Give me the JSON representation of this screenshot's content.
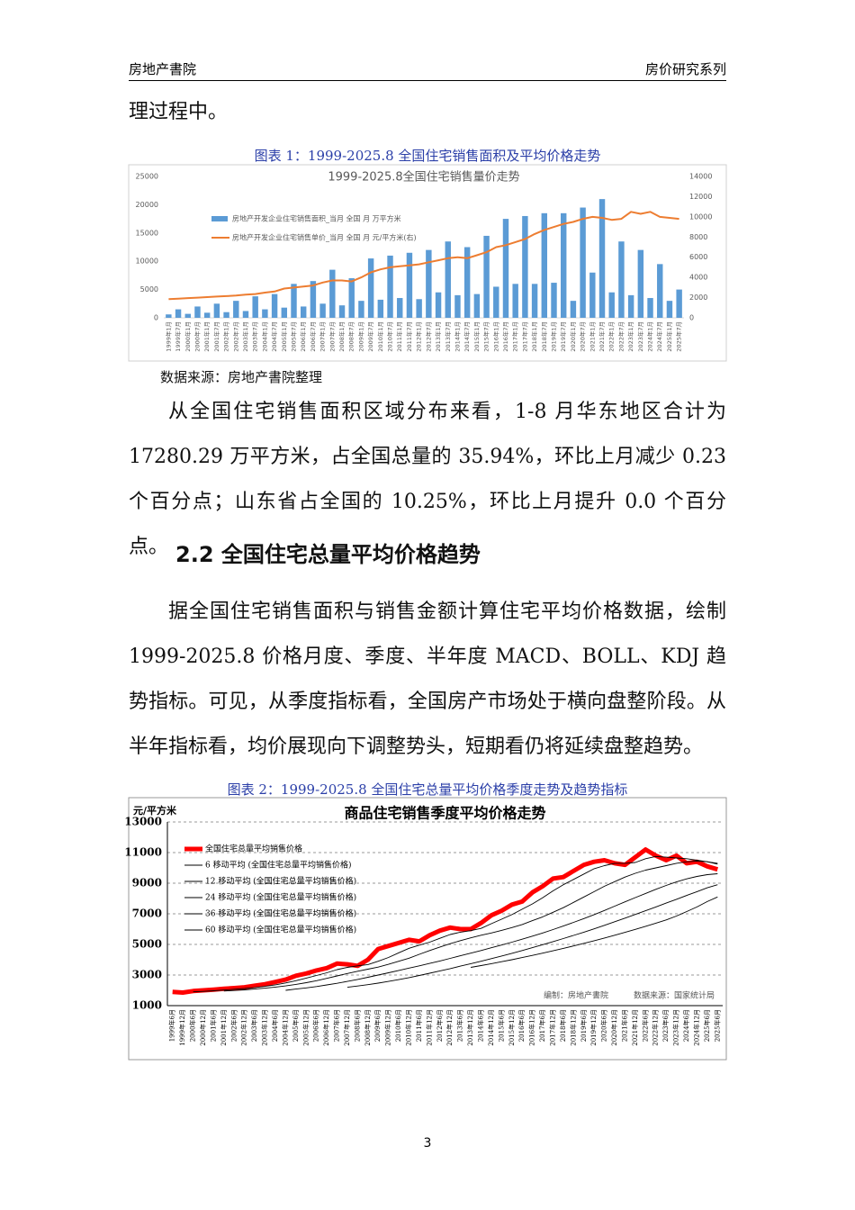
{
  "header": {
    "left": "房地产書院",
    "right": "房价研究系列"
  },
  "intro": "理过程中。",
  "figures": [
    {
      "caption": "图表 1：1999-2025.8 全国住宅销售面积及平均价格走势",
      "source": "数据来源：房地产書院整理"
    },
    {
      "caption": "图表 2：1999-2025.8 全国住宅总量平均价格季度走势及趋势指标"
    }
  ],
  "paragraphs1": [
    "从全国住宅销售面积区域分布来看，1-8 月华东地区合计为 17280.29 万平方米，占全国总量的 35.94%，环比上月减少 0.23 个百分点；山东省占全国的 10.25%，环比上月提升 0.0 个百分点。"
  ],
  "heading": "2.2 全国住宅总量平均价格趋势",
  "paragraphs2": [
    "据全国住宅销售面积与销售金额计算住宅平均价格数据，绘制 1999-2025.8 价格月度、季度、半年度 MACD、BOLL、KDJ 趋势指标。可见，从季度指标看，全国房产市场处于横向盘整阶段。从半年指标看，均价展现向下调整势头，短期看仍将延续盘整趋势。"
  ],
  "page_number": 3,
  "chart_data": [
    {
      "type": "bar",
      "title": "1999-2025.8全国住宅销售量价走势",
      "grid": false,
      "categories": [
        "1999年1月",
        "1999年7月",
        "2000年1月",
        "2000年7月",
        "2001年1月",
        "2001年7月",
        "2002年1月",
        "2002年7月",
        "2003年1月",
        "2003年7月",
        "2004年1月",
        "2004年7月",
        "2005年1月",
        "2005年7月",
        "2006年1月",
        "2006年7月",
        "2007年1月",
        "2007年7月",
        "2008年1月",
        "2008年7月",
        "2009年1月",
        "2009年7月",
        "2010年1月",
        "2010年7月",
        "2011年1月",
        "2011年7月",
        "2012年1月",
        "2012年7月",
        "2013年1月",
        "2013年7月",
        "2014年1月",
        "2014年7月",
        "2015年1月",
        "2015年7月",
        "2016年1月",
        "2016年7月",
        "2017年1月",
        "2017年7月",
        "2018年1月",
        "2018年7月",
        "2019年1月",
        "2019年7月",
        "2020年1月",
        "2020年7月",
        "2021年1月",
        "2021年7月",
        "2022年1月",
        "2022年7月",
        "2023年1月",
        "2023年7月",
        "2024年1月",
        "2024年7月",
        "2025年1月",
        "2025年7月"
      ],
      "ylim": [
        0,
        25000
      ],
      "yticks": [
        0,
        5000,
        10000,
        15000,
        20000,
        25000
      ],
      "y2lim": [
        0,
        14000
      ],
      "y2ticks": [
        0,
        2000,
        4000,
        6000,
        8000,
        10000,
        12000,
        14000
      ],
      "series": [
        {
          "name": "房地产开发企业住宅销售面积_当月 全国 月 万平方米",
          "type": "bar",
          "color": "#5b9bd5",
          "values": [
            600,
            1500,
            700,
            2000,
            900,
            2500,
            1000,
            3000,
            1200,
            3800,
            1500,
            4200,
            1800,
            6000,
            2000,
            6500,
            2500,
            8500,
            2200,
            7000,
            3000,
            10500,
            3200,
            11000,
            3500,
            11500,
            3300,
            12000,
            4500,
            13500,
            4000,
            12500,
            4200,
            14500,
            5500,
            17500,
            6000,
            18000,
            6000,
            18500,
            6200,
            18500,
            3000,
            19500,
            8000,
            21000,
            4500,
            13500,
            4000,
            12000,
            3500,
            9500,
            3000,
            5000
          ]
        },
        {
          "name": "房地产开发企业住宅销售单价_当月 全国 月 元/平方米(右)",
          "type": "line",
          "axis": "y2",
          "color": "#ed7d31",
          "values": [
            1850,
            1900,
            1950,
            2000,
            2050,
            2100,
            2150,
            2200,
            2300,
            2350,
            2500,
            2600,
            2900,
            3000,
            3100,
            3200,
            3500,
            3700,
            3700,
            3600,
            4000,
            4500,
            4800,
            5000,
            5100,
            5200,
            5300,
            5500,
            5700,
            5900,
            6000,
            5900,
            6200,
            6500,
            7000,
            7200,
            7500,
            7800,
            8300,
            8700,
            9000,
            9300,
            9500,
            9800,
            10000,
            9900,
            9700,
            9800,
            10500,
            10300,
            10500,
            10000,
            9900,
            9800
          ]
        }
      ]
    },
    {
      "type": "line",
      "title": "商品住宅销售季度平均价格走势",
      "y_label": "元/平方米",
      "grid": true,
      "annotations": [
        "编制：房地产書院",
        "数据来源：国家统计局"
      ],
      "categories": [
        "1999年6月",
        "1999年12月",
        "2000年6月",
        "2000年12月",
        "2001年6月",
        "2001年12月",
        "2002年6月",
        "2002年12月",
        "2003年6月",
        "2003年12月",
        "2004年6月",
        "2004年12月",
        "2005年6月",
        "2005年12月",
        "2006年6月",
        "2006年12月",
        "2007年6月",
        "2007年12月",
        "2008年6月",
        "2008年12月",
        "2009年6月",
        "2009年12月",
        "2010年6月",
        "2010年12月",
        "2011年6月",
        "2011年12月",
        "2012年6月",
        "2012年12月",
        "2013年6月",
        "2013年12月",
        "2014年6月",
        "2014年12月",
        "2015年6月",
        "2015年12月",
        "2016年6月",
        "2016年12月",
        "2017年6月",
        "2017年12月",
        "2018年6月",
        "2018年12月",
        "2019年6月",
        "2019年12月",
        "2020年6月",
        "2020年12月",
        "2021年6月",
        "2021年12月",
        "2022年6月",
        "2022年12月",
        "2023年6月",
        "2023年12月",
        "2024年6月",
        "2024年12月",
        "2025年6月",
        "2025年6月"
      ],
      "ylim": [
        1000,
        13000
      ],
      "yticks": [
        1000,
        3000,
        5000,
        7000,
        9000,
        11000,
        13000
      ],
      "series": [
        {
          "name": "全国住宅总量平均销售价格",
          "color": "#ff0000",
          "values": [
            1900,
            1850,
            1950,
            2000,
            2050,
            2100,
            2150,
            2200,
            2300,
            2400,
            2550,
            2700,
            2950,
            3100,
            3300,
            3450,
            3750,
            3700,
            3600,
            4000,
            4700,
            4900,
            5100,
            5300,
            5200,
            5600,
            5900,
            6100,
            6000,
            6000,
            6400,
            6900,
            7200,
            7600,
            7800,
            8400,
            8800,
            9300,
            9400,
            9800,
            10200,
            10400,
            10500,
            10300,
            10200,
            10700,
            11200,
            10800,
            10500,
            10800,
            10300,
            10400,
            10100,
            9900
          ]
        },
        {
          "name": "6 移动平均 (全国住宅总量平均销售价格)",
          "color": "#000000",
          "values": [
            null,
            null,
            1900,
            1930,
            1970,
            2020,
            2070,
            2120,
            2180,
            2260,
            2360,
            2480,
            2630,
            2800,
            2970,
            3150,
            3350,
            3500,
            3600,
            3680,
            3900,
            4150,
            4450,
            4750,
            4950,
            5150,
            5400,
            5650,
            5800,
            5900,
            6050,
            6350,
            6650,
            6950,
            7300,
            7650,
            8050,
            8500,
            8900,
            9250,
            9600,
            9950,
            10150,
            10300,
            10300,
            10350,
            10600,
            10750,
            10700,
            10650,
            10600,
            10500,
            10400,
            10250
          ]
        },
        {
          "name": "12 移动平均 (全国住宅总量平均销售价格)",
          "color": "#000000",
          "values": [
            null,
            null,
            null,
            null,
            null,
            1950,
            1990,
            2030,
            2080,
            2140,
            2210,
            2290,
            2390,
            2500,
            2630,
            2780,
            2940,
            3100,
            3250,
            3380,
            3520,
            3700,
            3900,
            4100,
            4350,
            4600,
            4830,
            5050,
            5250,
            5430,
            5600,
            5750,
            5920,
            6100,
            6300,
            6550,
            6800,
            7100,
            7400,
            7750,
            8100,
            8450,
            8800,
            9100,
            9400,
            9650,
            9850,
            10000,
            10150,
            10300,
            10400,
            10450,
            10400,
            10300
          ]
        },
        {
          "name": "24 移动平均 (全国住宅总量平均销售价格)",
          "color": "#000000",
          "values": [
            null,
            null,
            null,
            null,
            null,
            null,
            null,
            null,
            null,
            null,
            null,
            2000,
            2080,
            2160,
            2250,
            2350,
            2460,
            2580,
            2710,
            2850,
            3000,
            3150,
            3300,
            3450,
            3600,
            3760,
            3920,
            4090,
            4260,
            4430,
            4600,
            4780,
            4960,
            5150,
            5340,
            5540,
            5750,
            5970,
            6200,
            6440,
            6690,
            6950,
            7220,
            7500,
            7780,
            8060,
            8330,
            8600,
            8850,
            9080,
            9280,
            9440,
            9560,
            9620
          ]
        },
        {
          "name": "36 移动平均 (全国住宅总量平均销售价格)",
          "color": "#000000",
          "values": [
            null,
            null,
            null,
            null,
            null,
            null,
            null,
            null,
            null,
            null,
            null,
            null,
            null,
            null,
            null,
            null,
            null,
            2200,
            2280,
            2370,
            2470,
            2580,
            2700,
            2830,
            2970,
            3120,
            3270,
            3420,
            3580,
            3740,
            3900,
            4070,
            4240,
            4420,
            4600,
            4790,
            4980,
            5180,
            5380,
            5590,
            5800,
            6020,
            6250,
            6480,
            6720,
            6960,
            7200,
            7450,
            7700,
            7950,
            8200,
            8450,
            8700,
            8900
          ]
        },
        {
          "name": "60 移动平均 (全国住宅总量平均销售价格)",
          "color": "#000000",
          "values": [
            null,
            null,
            null,
            null,
            null,
            null,
            null,
            null,
            null,
            null,
            null,
            null,
            null,
            null,
            null,
            null,
            null,
            null,
            null,
            null,
            null,
            null,
            null,
            null,
            null,
            null,
            null,
            null,
            null,
            3500,
            3620,
            3740,
            3870,
            4000,
            4140,
            4280,
            4430,
            4580,
            4740,
            4900,
            5070,
            5240,
            5420,
            5600,
            5790,
            5980,
            6180,
            6390,
            6600,
            6850,
            7150,
            7450,
            7800,
            8100
          ]
        }
      ]
    }
  ]
}
